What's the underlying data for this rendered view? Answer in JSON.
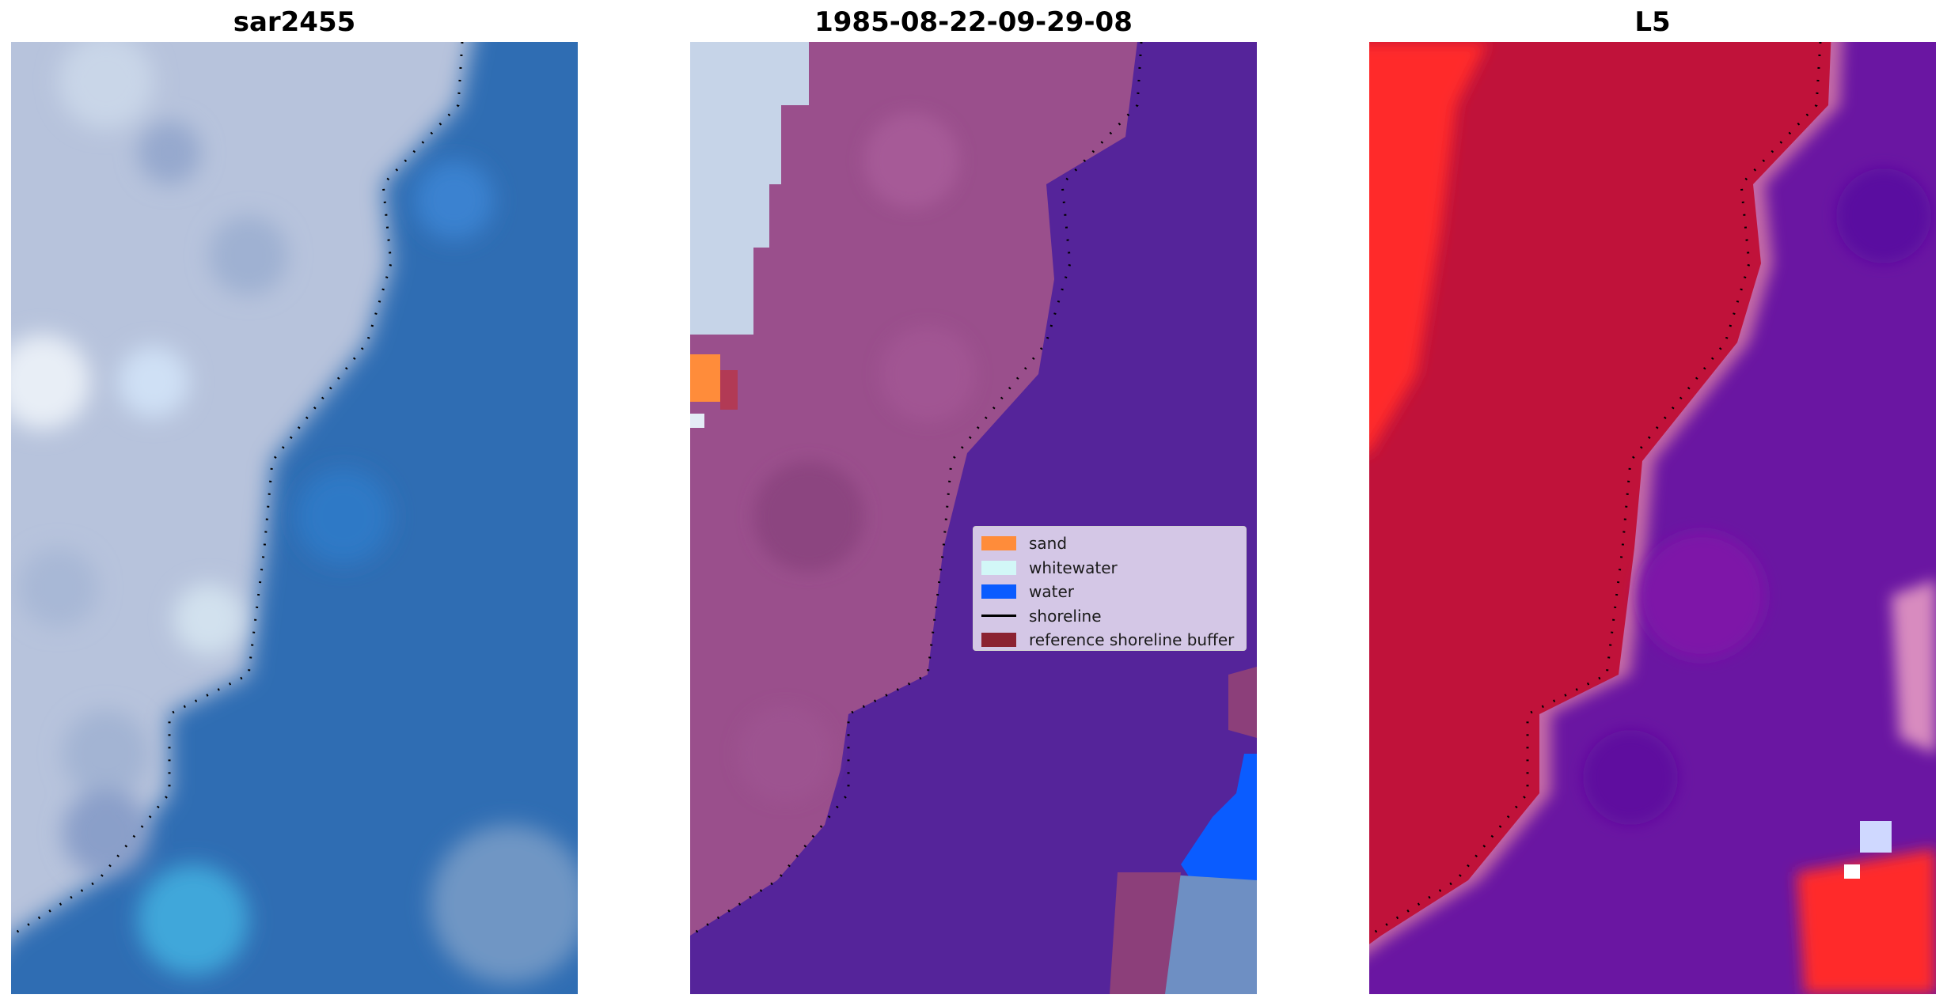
{
  "panels": [
    {
      "title": "sar2455"
    },
    {
      "title": "1985-08-22-09-29-08"
    },
    {
      "title": "L5"
    }
  ],
  "legend": {
    "items": [
      {
        "label": "sand",
        "color": "#ff8c3a",
        "kind": "patch"
      },
      {
        "label": "whitewater",
        "color": "#d2f7f7",
        "kind": "patch"
      },
      {
        "label": "water",
        "color": "#0a5cff",
        "kind": "patch"
      },
      {
        "label": "shoreline",
        "color": "#000000",
        "kind": "line"
      },
      {
        "label": "reference shoreline buffer",
        "color": "#8b2232",
        "kind": "patch"
      }
    ]
  },
  "colors": {
    "land_gray": "#b4c0da",
    "ocean_blue": "#2f6db3",
    "classified_land": "#9a4f8c",
    "classified_water": "#55249a",
    "prob_land": "#c0123a",
    "prob_water": "#6a16a2",
    "prob_high": "#ff2a2a"
  }
}
